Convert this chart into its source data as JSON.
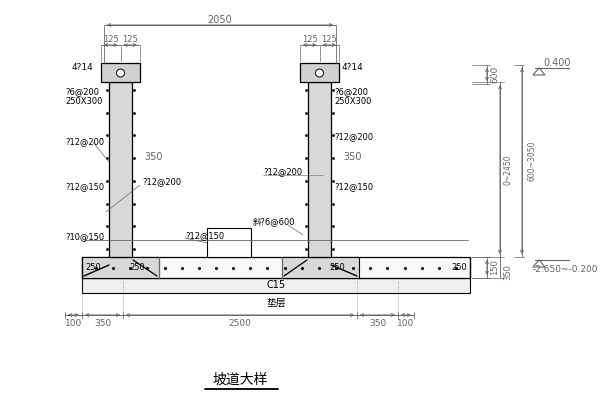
{
  "bg_color": "#ffffff",
  "lc": "#000000",
  "gc": "#666666",
  "title": "坡道大样",
  "c15_label": "C15",
  "dizeng_label": "垫层",
  "dim_2050": "2050",
  "dim_125a": "125",
  "dim_125b": "125",
  "dim_125c": "125",
  "dim_125d": "125",
  "dim_600": "600",
  "dim_0_2450": "0~2450",
  "dim_600_3050": "600~3050",
  "dim_150": "150",
  "dim_350r": "350",
  "dim_250a": "250",
  "dim_250b": "250",
  "dim_250c": "250",
  "dim_250d": "250",
  "dim_100a": "100",
  "dim_350a": "350",
  "dim_2500": "2500",
  "dim_350b": "350",
  "dim_100b": "100",
  "dim_350la": "350",
  "dim_350lb": "350",
  "elev_400": "0.400",
  "elev_bot": "-2.650~-0.200",
  "a_4phi14_l": "4?14",
  "a_phi6_200_l": "?6@200",
  "a_250x300_l": "250X300",
  "a_phi12_200_la": "?12@200",
  "a_phi12_150_l": "?12@150",
  "a_phi12_200_m": "?12@200",
  "a_phi10_150": "?10@150",
  "a_phi12_150_m": "?12@150",
  "a_4phi14_r": "4?14",
  "a_phi6_200_r": "?6@200",
  "a_250x300_r": "250X300",
  "a_phi12_200_ra": "?12@200",
  "a_phi12_200_rb": "?12@200",
  "a_phi12_150_r": "?12@150",
  "a_phi6_600": "斜?6@600"
}
